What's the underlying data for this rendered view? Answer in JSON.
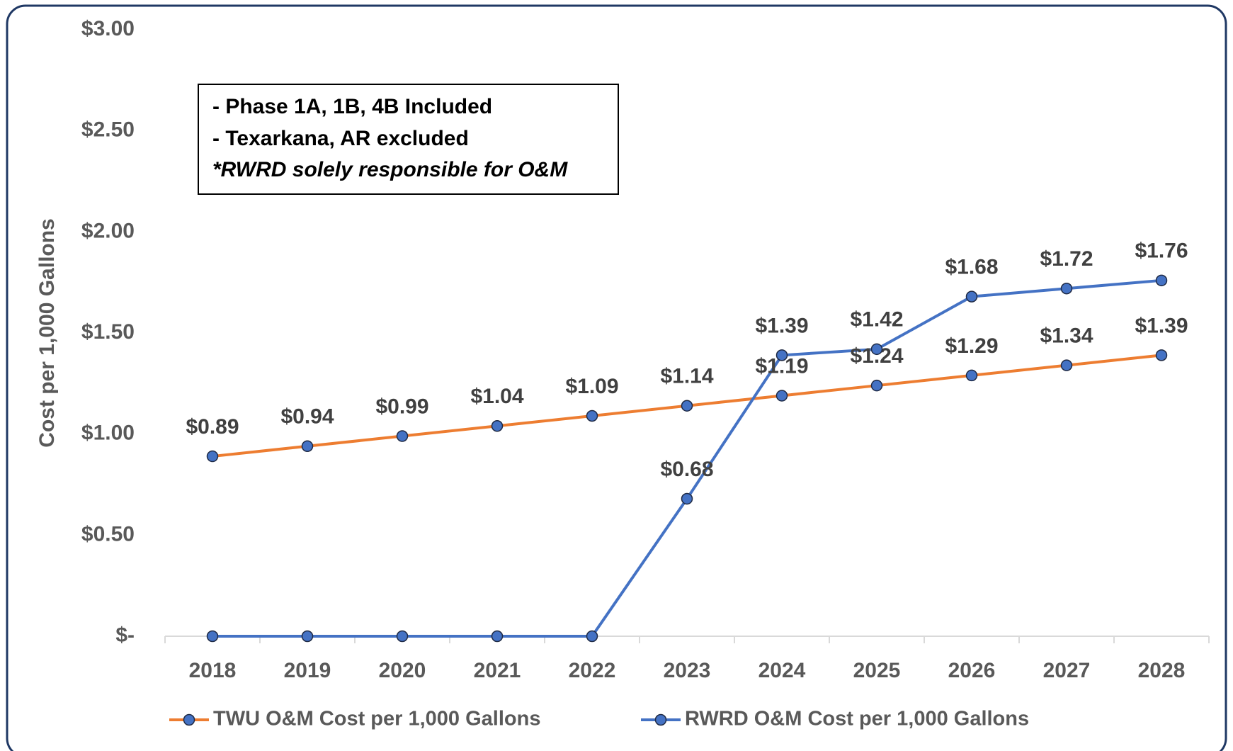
{
  "chart_data": {
    "type": "line",
    "ylabel": "Cost per 1,000 Gallons",
    "categories": [
      "2018",
      "2019",
      "2020",
      "2021",
      "2022",
      "2023",
      "2024",
      "2025",
      "2026",
      "2027",
      "2028"
    ],
    "series": [
      {
        "name": "TWU O&M Cost per 1,000 Gallons",
        "color": "#ed7d31",
        "marker_color": "#4472c4",
        "values": [
          0.89,
          0.94,
          0.99,
          1.04,
          1.09,
          1.14,
          1.19,
          1.24,
          1.29,
          1.34,
          1.39
        ],
        "value_labels": [
          "$0.89",
          "$0.94",
          "$0.99",
          "$1.04",
          "$1.09",
          "$1.14",
          "$1.19",
          "$1.24",
          "$1.29",
          "$1.34",
          "$1.39"
        ]
      },
      {
        "name": "RWRD O&M Cost per 1,000 Gallons",
        "color": "#4472c4",
        "marker_color": "#4472c4",
        "values": [
          0,
          0,
          0,
          0,
          0,
          0.68,
          1.39,
          1.42,
          1.68,
          1.72,
          1.76
        ],
        "value_labels": [
          null,
          null,
          null,
          null,
          null,
          "$0.68",
          "$1.39",
          "$1.42",
          "$1.68",
          "$1.72",
          "$1.76"
        ]
      }
    ],
    "ylim": [
      0,
      3
    ],
    "yticks": [
      {
        "value": 0,
        "label": "$-"
      },
      {
        "value": 0.5,
        "label": "$0.50"
      },
      {
        "value": 1,
        "label": "$1.00"
      },
      {
        "value": 1.5,
        "label": "$1.50"
      },
      {
        "value": 2,
        "label": "$2.00"
      },
      {
        "value": 2.5,
        "label": "$2.50"
      },
      {
        "value": 3,
        "label": "$3.00"
      }
    ],
    "grid": false,
    "legend": "bottom",
    "annotations": [
      "- Phase 1A, 1B, 4B Included",
      "- Texarkana, AR excluded",
      "*RWRD solely responsible for O&M"
    ]
  }
}
